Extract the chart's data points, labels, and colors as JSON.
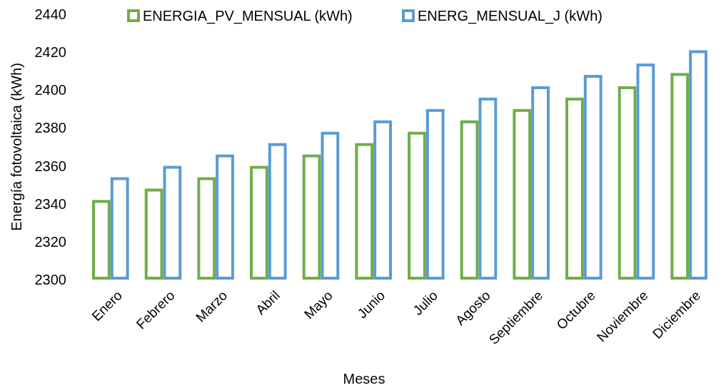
{
  "chart_data": {
    "type": "bar",
    "xlabel": "Meses",
    "ylabel": "Energía fotovoltaica (kWh)",
    "categories": [
      "Enero",
      "Febrero",
      "Marzo",
      "Abril",
      "Mayo",
      "Junio",
      "Julio",
      "Agosto",
      "Septiembre",
      "Octubre",
      "Noviembre",
      "Diciembre"
    ],
    "series": [
      {
        "name": "ENERGIA_PV_MENSUAL (kWh)",
        "color": "#70ad47",
        "values": [
          2342,
          2348,
          2354,
          2360,
          2366,
          2372,
          2378,
          2384,
          2390,
          2396,
          2402,
          2409
        ]
      },
      {
        "name": "ENERG_MENSUAL_J (kWh)",
        "color": "#5b9bd5",
        "values": [
          2354,
          2360,
          2366,
          2372,
          2378,
          2384,
          2390,
          2396,
          2402,
          2408,
          2414,
          2421
        ]
      }
    ],
    "ylim": [
      2300,
      2440
    ],
    "yticks": [
      2300,
      2320,
      2340,
      2360,
      2380,
      2400,
      2420,
      2440
    ],
    "legend": "top",
    "grid": false
  }
}
